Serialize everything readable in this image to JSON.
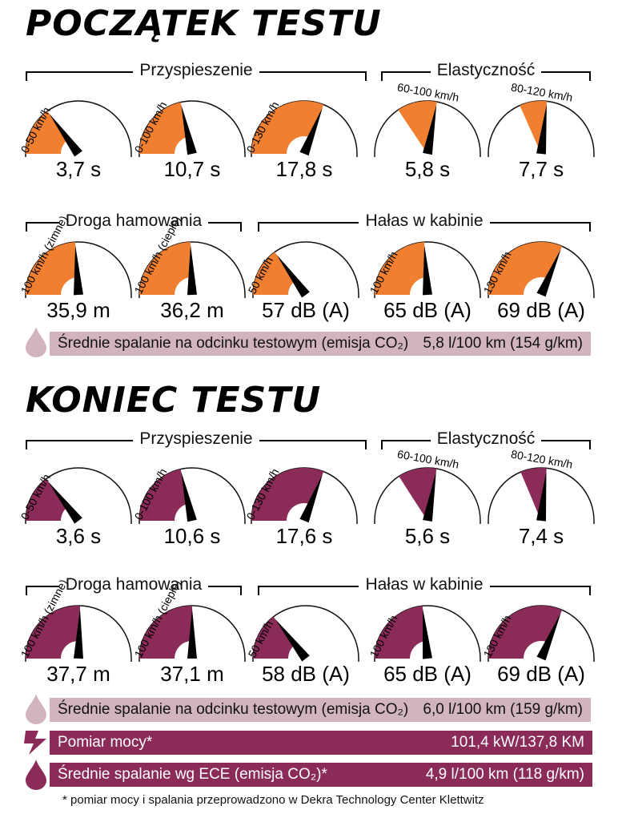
{
  "colors": {
    "start_fill": "#f08030",
    "end_fill": "#8b2b57",
    "bar_light": "#d2b4bf",
    "bar_dark": "#8b2b57",
    "drop_light": "#d2b4bf",
    "drop_dark": "#8b2b57"
  },
  "start": {
    "title": "POCZĄTEK TESTU",
    "groups": {
      "accel": "Przyspieszenie",
      "elast": "Elastyczność",
      "brake": "Droga hamowania",
      "noise": "Hałas w kabinie"
    },
    "consumption": {
      "label": "Średnie spalanie na odcinku testowym (emisja CO₂)",
      "value": "5,8 l/100 km (154 g/km)"
    }
  },
  "end": {
    "title": "KONIEC TESTU",
    "groups": {
      "accel": "Przyspieszenie",
      "elast": "Elastyczność",
      "brake": "Droga hamowania",
      "noise": "Hałas w kabinie"
    },
    "consumption": {
      "label": "Średnie spalanie na odcinku testowym (emisja CO₂)",
      "value": "6,0 l/100 km (159 g/km)"
    },
    "power": {
      "label": "Pomiar mocy*",
      "value": "101,4 kW/137,8 KM"
    },
    "ece": {
      "label": "Średnie spalanie wg ECE (emisja CO₂)*",
      "value": "4,9 l/100 km (118 g/km)"
    }
  },
  "footnote": "* pomiar mocy i spalania przeprowadzono w Dekra Technology Center Klettwitz",
  "chart_data": [
    {
      "type": "gauge",
      "title": "POCZĄTEK TESTU",
      "gauges": [
        {
          "group": "Przyspieszenie",
          "label": "0-50 km/h",
          "value": "3,7 s",
          "fraction": 0.3,
          "style": "full"
        },
        {
          "group": "Przyspieszenie",
          "label": "0-100 km/h",
          "value": "10,7 s",
          "fraction": 0.43,
          "style": "full"
        },
        {
          "group": "Przyspieszenie",
          "label": "0-130 km/h",
          "value": "17,8 s",
          "fraction": 0.62,
          "style": "full"
        },
        {
          "group": "Elastyczność",
          "label": "60-100 km/h",
          "value": "5,8 s",
          "fraction": 0.26,
          "style": "elast"
        },
        {
          "group": "Elastyczność",
          "label": "80-120 km/h",
          "value": "7,7 s",
          "fraction": 0.16,
          "style": "elast"
        },
        {
          "group": "Droga hamowania",
          "label": "100 km/h (zimne)",
          "value": "35,9 m",
          "fraction": 0.48,
          "style": "full"
        },
        {
          "group": "Droga hamowania",
          "label": "100 km/h (ciepłe)",
          "value": "36,2 m",
          "fraction": 0.49,
          "style": "full"
        },
        {
          "group": "Hałas w kabinie",
          "label": "50 km/h",
          "value": "57 dB (A)",
          "fraction": 0.3,
          "style": "full"
        },
        {
          "group": "Hałas w kabinie",
          "label": "100 km/h",
          "value": "65 dB (A)",
          "fraction": 0.48,
          "style": "full"
        },
        {
          "group": "Hałas w kabinie",
          "label": "130 km/h",
          "value": "69 dB (A)",
          "fraction": 0.63,
          "style": "full"
        }
      ]
    },
    {
      "type": "gauge",
      "title": "KONIEC TESTU",
      "gauges": [
        {
          "group": "Przyspieszenie",
          "label": "0-50 km/h",
          "value": "3,6 s",
          "fraction": 0.29,
          "style": "full"
        },
        {
          "group": "Przyspieszenie",
          "label": "0-100 km/h",
          "value": "10,6 s",
          "fraction": 0.43,
          "style": "full"
        },
        {
          "group": "Przyspieszenie",
          "label": "0-130 km/h",
          "value": "17,6 s",
          "fraction": 0.62,
          "style": "full"
        },
        {
          "group": "Elastyczność",
          "label": "60-100 km/h",
          "value": "5,6 s",
          "fraction": 0.25,
          "style": "elast"
        },
        {
          "group": "Elastyczność",
          "label": "80-120 km/h",
          "value": "7,4 s",
          "fraction": 0.15,
          "style": "elast"
        },
        {
          "group": "Droga hamowania",
          "label": "100 km/h (zimne)",
          "value": "37,7 m",
          "fraction": 0.51,
          "style": "full"
        },
        {
          "group": "Droga hamowania",
          "label": "100 km/h (ciepłe)",
          "value": "37,1 m",
          "fraction": 0.5,
          "style": "full"
        },
        {
          "group": "Hałas w kabinie",
          "label": "50 km/h",
          "value": "58 dB (A)",
          "fraction": 0.29,
          "style": "full"
        },
        {
          "group": "Hałas w kabinie",
          "label": "100 km/h",
          "value": "65 dB (A)",
          "fraction": 0.47,
          "style": "full"
        },
        {
          "group": "Hałas w kabinie",
          "label": "130 km/h",
          "value": "69 dB (A)",
          "fraction": 0.63,
          "style": "full"
        }
      ]
    }
  ]
}
